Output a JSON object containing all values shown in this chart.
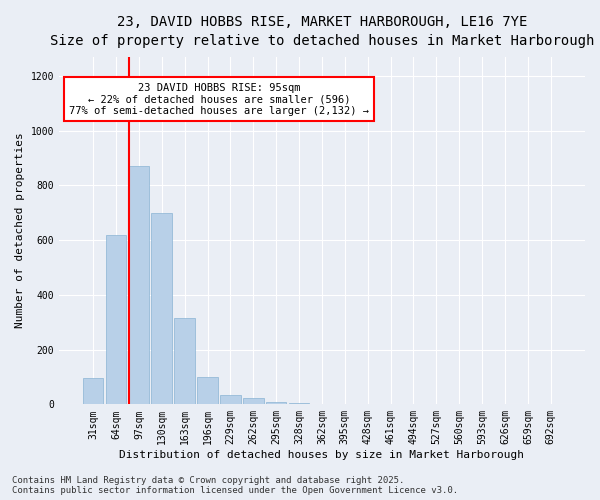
{
  "title_line1": "23, DAVID HOBBS RISE, MARKET HARBOROUGH, LE16 7YE",
  "title_line2": "Size of property relative to detached houses in Market Harborough",
  "xlabel": "Distribution of detached houses by size in Market Harborough",
  "ylabel": "Number of detached properties",
  "categories": [
    "31sqm",
    "64sqm",
    "97sqm",
    "130sqm",
    "163sqm",
    "196sqm",
    "229sqm",
    "262sqm",
    "295sqm",
    "328sqm",
    "362sqm",
    "395sqm",
    "428sqm",
    "461sqm",
    "494sqm",
    "527sqm",
    "560sqm",
    "593sqm",
    "626sqm",
    "659sqm",
    "692sqm"
  ],
  "values": [
    95,
    620,
    870,
    700,
    315,
    100,
    35,
    22,
    10,
    5,
    0,
    0,
    0,
    0,
    0,
    0,
    0,
    0,
    0,
    0,
    0
  ],
  "bar_color": "#b8d0e8",
  "bar_edge_color": "#8ab4d4",
  "property_line_color": "red",
  "property_line_idx": 2,
  "annotation_text": "23 DAVID HOBBS RISE: 95sqm\n← 22% of detached houses are smaller (596)\n77% of semi-detached houses are larger (2,132) →",
  "annotation_box_color": "white",
  "annotation_box_edge_color": "red",
  "ylim": [
    0,
    1270
  ],
  "yticks": [
    0,
    200,
    400,
    600,
    800,
    1000,
    1200
  ],
  "footer_line1": "Contains HM Land Registry data © Crown copyright and database right 2025.",
  "footer_line2": "Contains public sector information licensed under the Open Government Licence v3.0.",
  "bg_color": "#eaeef5",
  "plot_bg_color": "#eaeef5",
  "title_fontsize": 10,
  "subtitle_fontsize": 9,
  "axis_label_fontsize": 8,
  "tick_fontsize": 7,
  "footer_fontsize": 6.5,
  "annotation_fontsize": 7.5
}
